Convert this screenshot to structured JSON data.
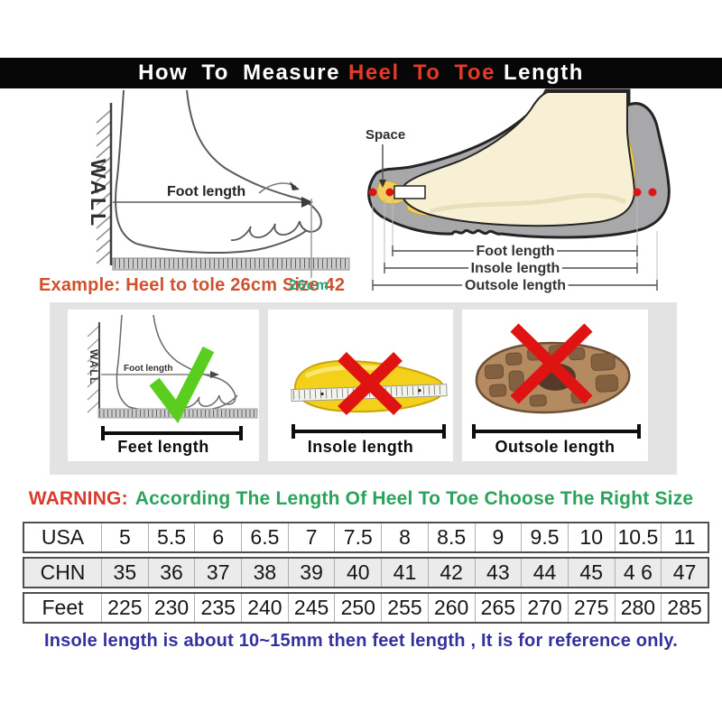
{
  "title": {
    "prefix": "How To Measure",
    "highlight": "Heel To Toe",
    "suffix": "Length"
  },
  "left_diagram": {
    "wall": "WALL",
    "foot_length": "Foot length",
    "example": "Example: Heel to tole 26cm Size 42",
    "ruler_value": "26cm"
  },
  "right_diagram": {
    "space": "Space",
    "foot_length": "Foot length",
    "insole_length": "Insole length",
    "outsole_length": "Outsole length"
  },
  "boxes": [
    {
      "label": "Feet length",
      "mark": "check",
      "wall": "WALL",
      "foot_length": "Foot length"
    },
    {
      "label": "Insole length",
      "mark": "cross"
    },
    {
      "label": "Outsole length",
      "mark": "cross"
    }
  ],
  "warning": {
    "label": "WARNING:",
    "text": "According The Length Of Heel To Toe Choose The Right Size"
  },
  "table": {
    "rows": [
      {
        "label": "USA",
        "shaded": false,
        "values": [
          "5",
          "5.5",
          "6",
          "6.5",
          "7",
          "7.5",
          "8",
          "8.5",
          "9",
          "9.5",
          "10",
          "10.5",
          "11"
        ]
      },
      {
        "label": "CHN",
        "shaded": true,
        "values": [
          "35",
          "36",
          "37",
          "38",
          "39",
          "40",
          "41",
          "42",
          "43",
          "44",
          "45",
          "4 6",
          "47"
        ]
      },
      {
        "label": "Feet",
        "shaded": false,
        "values": [
          "225",
          "230",
          "235",
          "240",
          "245",
          "250",
          "255",
          "260",
          "265",
          "270",
          "275",
          "280",
          "285"
        ]
      }
    ]
  },
  "note": "Insole length is about 10~15mm then feet length , It is for reference only.",
  "colors": {
    "title_red": "#e23a2b",
    "warning_red": "#d93b2c",
    "warning_green": "#2aa45c",
    "example_orange": "#d0512e",
    "ruler_green": "#2ba377",
    "note_purple": "#36309e",
    "check_green": "#5bcd1f",
    "cross_red": "#e01313",
    "insole_yellow": "#f3d019",
    "outsole_brown": "#b48a60",
    "shoe_gray": "#a8a8ab",
    "foot_cream": "#f7f0d4"
  }
}
